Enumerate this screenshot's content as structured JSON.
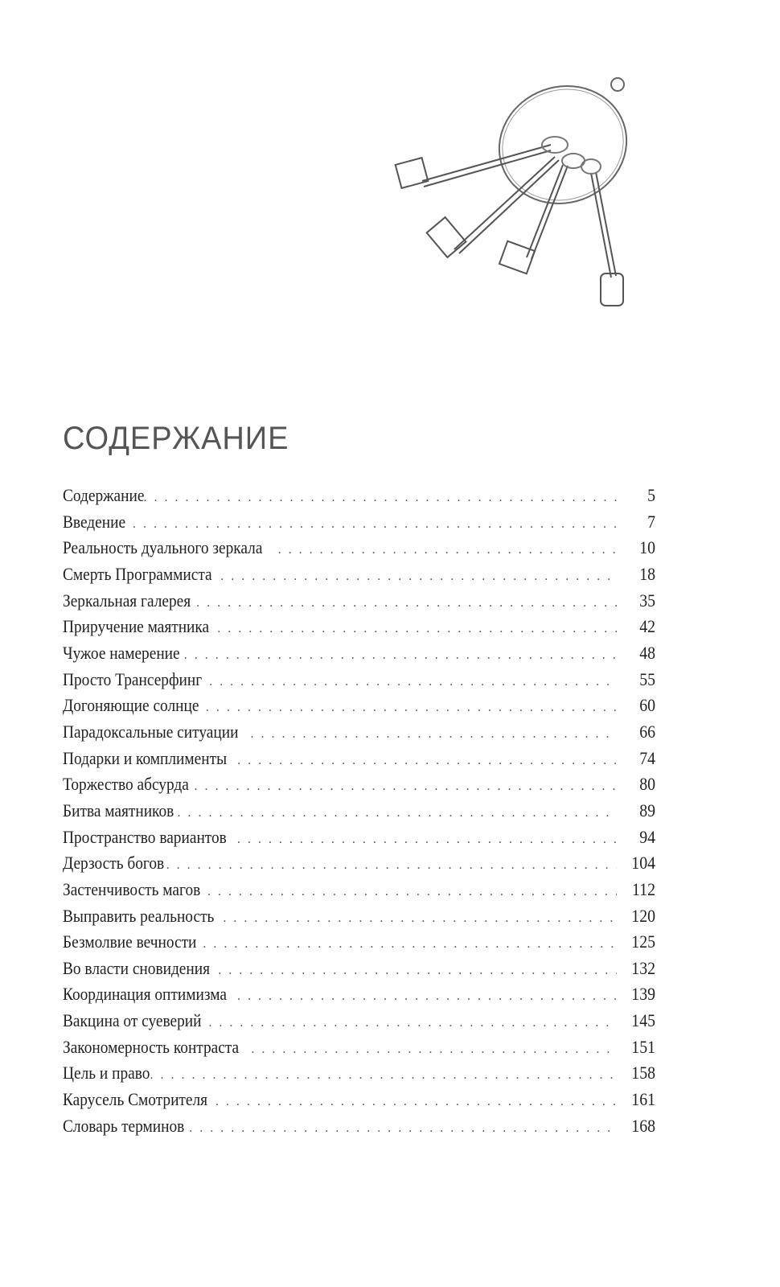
{
  "illustration": "keyring-with-keys",
  "title": "СОДЕРЖАНИЕ",
  "entries": [
    {
      "title": "Содержание",
      "page": "5"
    },
    {
      "title": "Введение",
      "page": "7"
    },
    {
      "title": "Реальность дуального зеркала",
      "page": "10"
    },
    {
      "title": "Смерть Программиста",
      "page": "18"
    },
    {
      "title": "Зеркальная галерея",
      "page": "35"
    },
    {
      "title": "Приручение маятника",
      "page": "42"
    },
    {
      "title": "Чужое намерение",
      "page": "48"
    },
    {
      "title": "Просто Трансерфинг",
      "page": "55"
    },
    {
      "title": "Догоняющие солнце",
      "page": "60"
    },
    {
      "title": "Парадоксальные ситуации",
      "page": "66"
    },
    {
      "title": "Подарки и комплименты",
      "page": "74"
    },
    {
      "title": "Торжество абсурда",
      "page": "80"
    },
    {
      "title": "Битва маятников",
      "page": "89"
    },
    {
      "title": "Пространство вариантов",
      "page": "94"
    },
    {
      "title": "Дерзость богов",
      "page": "104"
    },
    {
      "title": "Застенчивость магов",
      "page": "112"
    },
    {
      "title": "Выправить реальность",
      "page": "120"
    },
    {
      "title": "Безмолвие вечности",
      "page": "125"
    },
    {
      "title": "Во власти сновидения",
      "page": "132"
    },
    {
      "title": "Координация оптимизма",
      "page": "139"
    },
    {
      "title": "Вакцина от суеверий",
      "page": "145"
    },
    {
      "title": "Закономерность контраста",
      "page": "151"
    },
    {
      "title": "Цель и право",
      "page": "158"
    },
    {
      "title": "Карусель Смотрителя",
      "page": "161"
    },
    {
      "title": "Словарь терминов",
      "page": "168"
    }
  ]
}
